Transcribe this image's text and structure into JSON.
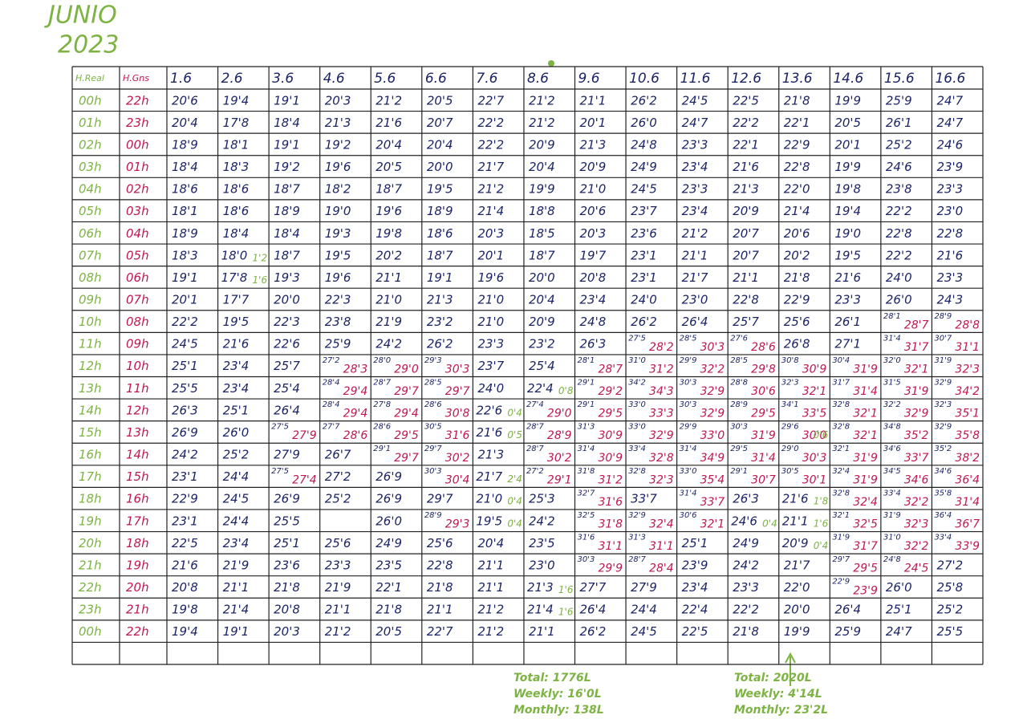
{
  "title": "JUNIO",
  "year": "2023",
  "table": {
    "header": [
      "H.Real",
      "H.Gns",
      "1.6",
      "2.6",
      "3.6",
      "4.6",
      "5.6",
      "6.6",
      "7.6",
      "8.6",
      "9.6",
      "10.6",
      "11.6",
      "12.6",
      "13.6",
      "14.6",
      "15.6",
      "16.6"
    ],
    "rows": [
      {
        "real": "00h",
        "gns": "22h",
        "cells": [
          "20'6",
          "19'4",
          "19'1",
          "20'3",
          "21'2",
          "20'5",
          "22'7",
          "21'2",
          "21'1",
          "26'2",
          "24'5",
          "22'5",
          "21'8",
          "19'9",
          "25'9",
          "24'7"
        ]
      },
      {
        "real": "01h",
        "gns": "23h",
        "cells": [
          "20'4",
          "17'8",
          "18'4",
          "21'3",
          "21'6",
          "20'7",
          "22'2",
          "21'2",
          "20'1",
          "26'0",
          "24'7",
          "22'2",
          "22'1",
          "20'5",
          "26'1",
          "24'7"
        ]
      },
      {
        "real": "02h",
        "gns": "00h",
        "cells": [
          "18'9",
          "18'1",
          "19'1",
          "19'2",
          "20'4",
          "20'4",
          "22'2",
          "20'9",
          "21'3",
          "24'8",
          "23'3",
          "22'1",
          "22'9",
          "20'1",
          "25'2",
          "24'6"
        ]
      },
      {
        "real": "03h",
        "gns": "01h",
        "cells": [
          "18'4",
          "18'3",
          "19'2",
          "19'6",
          "20'5",
          "20'0",
          "21'7",
          "20'4",
          "20'9",
          "24'9",
          "23'4",
          "21'6",
          "22'8",
          "19'9",
          "24'6",
          "23'9"
        ]
      },
      {
        "real": "04h",
        "gns": "02h",
        "cells": [
          "18'6",
          "18'6",
          "18'7",
          "18'2",
          "18'7",
          "19'5",
          "21'2",
          "19'9",
          "21'0",
          "24'5",
          "23'3",
          "21'3",
          "22'0",
          "19'8",
          "23'8",
          "23'3"
        ]
      },
      {
        "real": "05h",
        "gns": "03h",
        "cells": [
          "18'1",
          "18'6",
          "18'9",
          "19'0",
          "19'6",
          "18'9",
          "21'4",
          "18'8",
          "20'6",
          "23'7",
          "23'4",
          "20'9",
          "21'4",
          "19'4",
          "22'2",
          "23'0"
        ]
      },
      {
        "real": "06h",
        "gns": "04h",
        "cells": [
          "18'9",
          "18'4",
          "18'4",
          "19'3",
          "19'8",
          "18'6",
          "20'3",
          "18'5",
          "20'3",
          "23'6",
          "21'2",
          "20'7",
          "20'6",
          "19'0",
          "22'8",
          "22'8"
        ]
      },
      {
        "real": "07h",
        "gns": "05h",
        "cells": [
          "18'3",
          {
            "v": "18'0",
            "g": "1'2"
          },
          "18'7",
          "19'5",
          "20'2",
          "18'7",
          "20'1",
          "18'7",
          "19'7",
          "23'1",
          "21'1",
          "20'7",
          "20'2",
          "19'5",
          "22'2",
          "21'6"
        ]
      },
      {
        "real": "08h",
        "gns": "06h",
        "cells": [
          "19'1",
          {
            "v": "17'8",
            "g": "1'6"
          },
          "19'3",
          "19'6",
          "21'1",
          "19'1",
          "19'6",
          "20'0",
          "20'8",
          "23'1",
          "21'7",
          "21'1",
          "21'8",
          "21'6",
          "24'0",
          "23'3"
        ]
      },
      {
        "real": "09h",
        "gns": "07h",
        "cells": [
          "20'1",
          "17'7",
          "20'0",
          "22'3",
          "21'0",
          "21'3",
          "21'0",
          "20'4",
          "23'4",
          "24'0",
          "23'0",
          "22'8",
          "22'9",
          "23'3",
          "26'0",
          "24'3"
        ]
      },
      {
        "real": "10h",
        "gns": "08h",
        "cells": [
          "22'2",
          "19'5",
          "22'3",
          "23'8",
          "21'9",
          "23'2",
          "21'0",
          "20'9",
          "24'8",
          "26'2",
          "26'4",
          "25'7",
          "25'6",
          "26'1",
          {
            "v": "28'1",
            "r": "28'7"
          },
          {
            "v": "28'9",
            "r": "28'8"
          }
        ]
      },
      {
        "real": "11h",
        "gns": "09h",
        "cells": [
          "24'5",
          "21'6",
          "22'6",
          "25'9",
          "24'2",
          "26'2",
          "23'3",
          "23'2",
          "26'3",
          {
            "v": "27'5",
            "r": "28'2"
          },
          {
            "v": "28'5",
            "r": "30'3"
          },
          {
            "v": "27'6",
            "r": "28'6"
          },
          "26'8",
          "27'1",
          {
            "v": "31'4",
            "r": "31'7"
          },
          {
            "v": "30'7",
            "r": "31'1"
          }
        ]
      },
      {
        "real": "12h",
        "gns": "10h",
        "cells": [
          "25'1",
          "23'4",
          "25'7",
          {
            "v": "27'2",
            "r": "28'3"
          },
          {
            "v": "28'0",
            "r": "29'0"
          },
          {
            "v": "29'3",
            "r": "30'3"
          },
          "23'7",
          "25'4",
          {
            "v": "28'1",
            "r": "28'7"
          },
          {
            "v": "31'0",
            "r": "31'2"
          },
          {
            "v": "29'9",
            "r": "32'2"
          },
          {
            "v": "28'5",
            "r": "29'8"
          },
          {
            "v": "30'8",
            "r": "30'9"
          },
          {
            "v": "30'4",
            "r": "31'9"
          },
          {
            "v": "32'0",
            "r": "32'1"
          },
          {
            "v": "31'9",
            "r": "32'3"
          }
        ]
      },
      {
        "real": "13h",
        "gns": "11h",
        "cells": [
          "25'5",
          "23'4",
          "25'4",
          {
            "v": "28'4",
            "r": "29'4"
          },
          {
            "v": "28'7",
            "r": "29'7"
          },
          {
            "v": "28'5",
            "r": "29'7"
          },
          "24'0",
          {
            "v": "22'4",
            "g": "0'8"
          },
          {
            "v": "29'1",
            "r": "29'2"
          },
          {
            "v": "34'2",
            "r": "34'3"
          },
          {
            "v": "30'3",
            "r": "32'9"
          },
          {
            "v": "28'8",
            "r": "30'6"
          },
          {
            "v": "32'3",
            "r": "32'1"
          },
          {
            "v": "31'7",
            "r": "31'4"
          },
          {
            "v": "31'5",
            "r": "31'9"
          },
          {
            "v": "32'9",
            "r": "34'2"
          }
        ]
      },
      {
        "real": "14h",
        "gns": "12h",
        "cells": [
          "26'3",
          "25'1",
          "26'4",
          {
            "v": "28'4",
            "r": "29'4"
          },
          {
            "v": "27'8",
            "r": "29'4"
          },
          {
            "v": "28'6",
            "r": "30'8"
          },
          {
            "v": "22'6",
            "g": "0'4"
          },
          {
            "v": "27'4",
            "r": "29'0"
          },
          {
            "v": "29'1",
            "r": "29'5"
          },
          {
            "v": "33'0",
            "r": "33'3"
          },
          {
            "v": "30'3",
            "r": "32'9"
          },
          {
            "v": "28'9",
            "r": "29'5"
          },
          {
            "v": "34'1",
            "r": "33'5"
          },
          {
            "v": "32'8",
            "r": "32'1"
          },
          {
            "v": "32'2",
            "r": "32'9"
          },
          {
            "v": "32'3",
            "r": "35'1"
          }
        ]
      },
      {
        "real": "15h",
        "gns": "13h",
        "cells": [
          "26'9",
          "26'0",
          {
            "v": "27'5",
            "r": "27'9"
          },
          {
            "v": "27'7",
            "r": "28'6"
          },
          {
            "v": "28'6",
            "r": "29'5"
          },
          {
            "v": "30'5",
            "r": "31'6"
          },
          {
            "v": "21'6",
            "g": "0'5"
          },
          {
            "v": "28'7",
            "r": "28'9"
          },
          {
            "v": "31'3",
            "r": "30'9"
          },
          {
            "v": "33'0",
            "r": "32'9"
          },
          {
            "v": "29'9",
            "r": "33'0"
          },
          {
            "v": "30'3",
            "r": "31'9"
          },
          {
            "v": "29'6",
            "r": "30'0",
            "g": "0'6"
          },
          {
            "v": "32'8",
            "r": "32'1"
          },
          {
            "v": "34'8",
            "r": "35'2"
          },
          {
            "v": "32'9",
            "r": "35'8"
          }
        ]
      },
      {
        "real": "16h",
        "gns": "14h",
        "cells": [
          "24'2",
          "25'2",
          "27'9",
          "26'7",
          {
            "v": "29'1",
            "r": "29'7"
          },
          {
            "v": "29'7",
            "r": "30'2"
          },
          "21'3",
          {
            "v": "28'7",
            "r": "30'2"
          },
          {
            "v": "31'4",
            "r": "30'9"
          },
          {
            "v": "33'4",
            "r": "32'8"
          },
          {
            "v": "31'4",
            "r": "34'9"
          },
          {
            "v": "29'5",
            "r": "31'4"
          },
          {
            "v": "29'0",
            "r": "30'3"
          },
          {
            "v": "32'1",
            "r": "31'9"
          },
          {
            "v": "34'6",
            "r": "33'7"
          },
          {
            "v": "35'2",
            "r": "38'2"
          }
        ]
      },
      {
        "real": "17h",
        "gns": "15h",
        "cells": [
          "23'1",
          "24'4",
          {
            "v": "27'5",
            "r": "27'4"
          },
          "27'2",
          "26'9",
          {
            "v": "30'3",
            "r": "30'4"
          },
          {
            "v": "21'7",
            "g": "2'4"
          },
          {
            "v": "27'2",
            "r": "29'1"
          },
          {
            "v": "31'8",
            "r": "31'2"
          },
          {
            "v": "32'8",
            "r": "32'3"
          },
          {
            "v": "33'0",
            "r": "35'4"
          },
          {
            "v": "29'1",
            "r": "30'7"
          },
          {
            "v": "30'5",
            "r": "30'1"
          },
          {
            "v": "32'4",
            "r": "31'9"
          },
          {
            "v": "34'5",
            "r": "34'6"
          },
          {
            "v": "34'6",
            "r": "36'4"
          }
        ]
      },
      {
        "real": "18h",
        "gns": "16h",
        "cells": [
          "22'9",
          "24'5",
          "26'9",
          "25'2",
          "26'9",
          "29'7",
          {
            "v": "21'0",
            "g": "0'4"
          },
          "25'3",
          {
            "v": "32'7",
            "r": "31'6"
          },
          "33'7",
          {
            "v": "31'4",
            "r": "33'7"
          },
          "26'3",
          {
            "v": "21'6",
            "g": "1'8"
          },
          {
            "v": "32'8",
            "r": "32'4"
          },
          {
            "v": "33'4",
            "r": "32'2"
          },
          {
            "v": "35'8",
            "r": "31'4"
          }
        ]
      },
      {
        "real": "19h",
        "gns": "17h",
        "cells": [
          "23'1",
          "24'4",
          "25'5",
          null,
          "26'0",
          {
            "v": "28'9",
            "r": "29'3"
          },
          {
            "v": "19'5",
            "g": "0'4"
          },
          "24'2",
          {
            "v": "32'5",
            "r": "31'8"
          },
          {
            "v": "32'9",
            "r": "32'4"
          },
          {
            "v": "30'6",
            "r": "32'1"
          },
          {
            "v": "24'6",
            "g": "0'4"
          },
          {
            "v": "21'1",
            "g": "1'6"
          },
          {
            "v": "32'1",
            "r": "32'5"
          },
          {
            "v": "31'9",
            "r": "32'3"
          },
          {
            "v": "36'4",
            "r": "36'7"
          }
        ]
      },
      {
        "real": "20h",
        "gns": "18h",
        "cells": [
          "22'5",
          "23'4",
          "25'1",
          "25'6",
          "24'9",
          "25'6",
          "20'4",
          "23'5",
          {
            "v": "31'6",
            "r": "31'1"
          },
          {
            "v": "31'3",
            "r": "31'1"
          },
          "25'1",
          "24'9",
          {
            "v": "20'9",
            "g": "0'4"
          },
          {
            "v": "31'9",
            "r": "31'7"
          },
          {
            "v": "31'0",
            "r": "32'2"
          },
          {
            "v": "33'4",
            "r": "33'9"
          }
        ]
      },
      {
        "real": "21h",
        "gns": "19h",
        "cells": [
          "21'6",
          "21'9",
          "23'6",
          "23'3",
          "23'5",
          "22'8",
          "21'1",
          "23'0",
          {
            "v": "30'3",
            "r": "29'9"
          },
          {
            "v": "28'7",
            "r": "28'4"
          },
          "23'9",
          "24'2",
          "21'7",
          {
            "v": "29'7",
            "r": "29'5"
          },
          {
            "v": "24'8",
            "r": "24'5"
          },
          "27'2"
        ]
      },
      {
        "real": "22h",
        "gns": "20h",
        "cells": [
          "20'8",
          "21'1",
          "21'8",
          "21'9",
          "22'1",
          "21'8",
          "21'1",
          {
            "v": "21'3",
            "g": "1'6"
          },
          "27'7",
          "27'9",
          "23'4",
          "23'3",
          "22'0",
          {
            "v": "22'9",
            "r": "23'9"
          },
          "26'0",
          "25'8"
        ]
      },
      {
        "real": "23h",
        "gns": "21h",
        "cells": [
          "19'8",
          "21'4",
          "20'8",
          "21'1",
          "21'8",
          "21'1",
          "21'2",
          {
            "v": "21'4",
            "g": "1'6"
          },
          "26'4",
          "24'4",
          "22'4",
          "22'2",
          "20'0",
          "26'4",
          "25'1",
          "25'2"
        ]
      },
      {
        "real": "00h",
        "gns": "22h",
        "cells": [
          "19'4",
          "19'1",
          "20'3",
          "21'2",
          "20'5",
          "22'7",
          "21'2",
          "21'1",
          "26'2",
          "24'5",
          "22'5",
          "21'8",
          "19'9",
          "25'9",
          "24'7",
          "25'5"
        ]
      }
    ]
  },
  "notes": [
    {
      "lines": [
        "Total: 1776L",
        "Weekly: 16'0L",
        "Monthly: 138L"
      ]
    },
    {
      "lines": [
        "Total: 2020L",
        "Weekly: 4'14L",
        "Monthly: 23'2L"
      ]
    }
  ]
}
